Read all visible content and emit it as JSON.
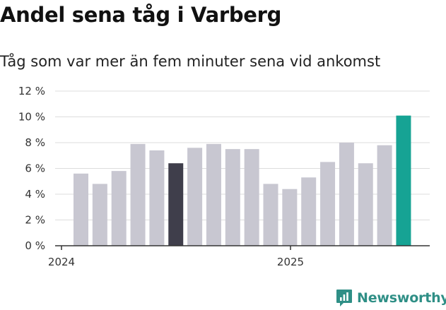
{
  "title": "Andel sena tåg i Varberg",
  "subtitle": "Tåg som var mer än fem minuter sena vid ankomst",
  "brand": {
    "name": "Newsworthy",
    "icon": "newsworthy-logo-icon",
    "color": "#2f8f86"
  },
  "colors": {
    "default": "#c8c7d1",
    "highlight_dark": "#3f3e4b",
    "highlight_accent": "#16a394",
    "grid": "#dddddd",
    "axis": "#333333"
  },
  "chart_data": {
    "type": "bar",
    "title": "Andel sena tåg i Varberg",
    "subtitle": "Tåg som var mer än fem minuter sena vid ankomst",
    "xlabel": "",
    "ylabel": "",
    "ylim": [
      0,
      12
    ],
    "yticks": [
      "0 %",
      "2 %",
      "4 %",
      "6 %",
      "8 %",
      "10 %",
      "12 %"
    ],
    "xtick_labels": [
      "2024",
      "2025"
    ],
    "grid": true,
    "legend": "none",
    "categories": [
      "2024-01",
      "2024-02",
      "2024-03",
      "2024-04",
      "2024-05",
      "2024-06",
      "2024-07",
      "2024-08",
      "2024-09",
      "2024-10",
      "2024-11",
      "2024-12",
      "2025-01",
      "2025-02",
      "2025-03",
      "2025-04",
      "2025-05",
      "2025-06"
    ],
    "values": [
      5.6,
      4.8,
      5.8,
      7.9,
      7.4,
      6.4,
      7.6,
      7.9,
      7.5,
      7.5,
      4.8,
      4.4,
      5.3,
      6.5,
      8.0,
      6.4,
      7.8,
      10.1
    ],
    "highlight": {
      "2024-06": "highlight_dark",
      "2025-06": "highlight_accent"
    }
  }
}
